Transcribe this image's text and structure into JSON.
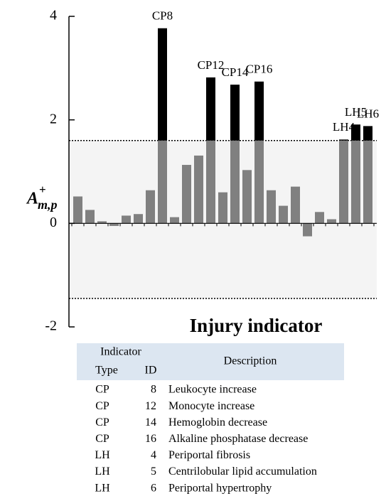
{
  "chart_data": {
    "type": "bar",
    "y_label": {
      "base": "A",
      "sup": "+",
      "sub": "m,p"
    },
    "x_label": "Injury indicator",
    "categories": [
      null,
      null,
      null,
      null,
      null,
      null,
      null,
      "CP8",
      null,
      null,
      null,
      "CP12",
      null,
      "CP14",
      null,
      "CP16",
      null,
      null,
      null,
      null,
      null,
      null,
      "LH4",
      "LH5",
      "LH6"
    ],
    "values": [
      0.52,
      0.26,
      0.04,
      -0.05,
      0.15,
      0.18,
      0.64,
      3.77,
      0.12,
      1.13,
      1.31,
      2.82,
      0.6,
      2.68,
      1.03,
      2.74,
      0.64,
      0.34,
      0.71,
      -0.25,
      0.22,
      0.08,
      1.62,
      1.91,
      1.88
    ],
    "color": "#808080",
    "highlight_color": "#000000",
    "thresholds": [
      1.6,
      -1.45
    ],
    "ylim": [
      -2,
      4
    ],
    "yticks": [
      -2,
      0,
      2,
      4
    ]
  },
  "table": {
    "header": {
      "group": "Indicator",
      "type": "Type",
      "id": "ID",
      "description": "Description"
    },
    "rows": [
      [
        "CP",
        "8",
        "Leukocyte increase"
      ],
      [
        "CP",
        "12",
        "Monocyte increase"
      ],
      [
        "CP",
        "14",
        "Hemoglobin decrease"
      ],
      [
        "CP",
        "16",
        "Alkaline phosphatase decrease"
      ],
      [
        "LH",
        "4",
        "Periportal fibrosis"
      ],
      [
        "LH",
        "5",
        "Centrilobular lipid accumulation"
      ],
      [
        "LH",
        "6",
        "Periportal hypertrophy"
      ]
    ]
  }
}
